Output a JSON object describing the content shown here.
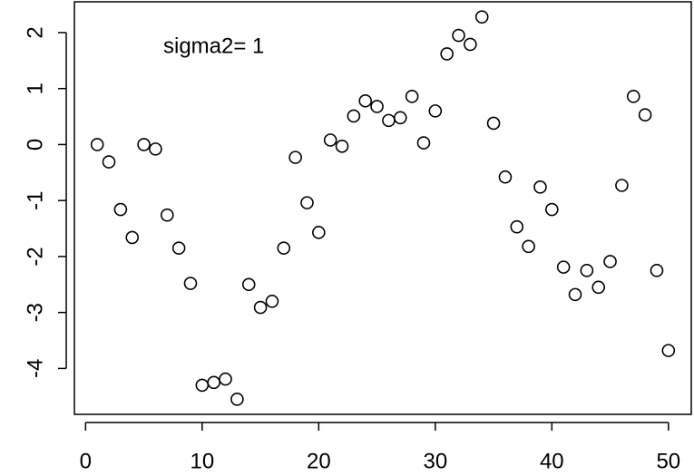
{
  "chart_data": {
    "type": "scatter",
    "annotation": "sigma2= 1",
    "x": [
      1,
      2,
      3,
      4,
      5,
      6,
      7,
      8,
      9,
      10,
      11,
      12,
      13,
      14,
      15,
      16,
      17,
      18,
      19,
      20,
      21,
      22,
      23,
      24,
      25,
      26,
      27,
      28,
      29,
      30,
      31,
      32,
      33,
      34,
      35,
      36,
      37,
      38,
      39,
      40,
      41,
      42,
      43,
      44,
      45,
      46,
      47,
      48,
      49,
      50
    ],
    "values": [
      0.0,
      -0.31,
      -1.16,
      -1.66,
      0.0,
      -0.08,
      -1.26,
      -1.85,
      -2.48,
      -4.3,
      -4.25,
      -4.19,
      -4.55,
      -2.5,
      -2.91,
      -2.8,
      -1.85,
      -0.23,
      -1.04,
      -1.57,
      0.08,
      -0.03,
      0.51,
      0.78,
      0.68,
      0.43,
      0.48,
      0.86,
      0.03,
      0.6,
      1.62,
      1.95,
      1.79,
      2.28,
      0.38,
      -0.58,
      -1.47,
      -1.82,
      -0.76,
      -1.16,
      -2.19,
      -2.68,
      -2.25,
      -2.55,
      -2.09,
      -0.73,
      0.86,
      0.53,
      -2.25,
      -3.68
    ],
    "color": "#000000",
    "xlim": [
      -0.96,
      51.96
    ],
    "xticks": [
      0,
      10,
      20,
      30,
      40,
      50
    ],
    "ylim": [
      -4.82,
      2.55
    ],
    "yticks": [
      -4,
      -3,
      -2,
      -1,
      0,
      1,
      2
    ]
  }
}
